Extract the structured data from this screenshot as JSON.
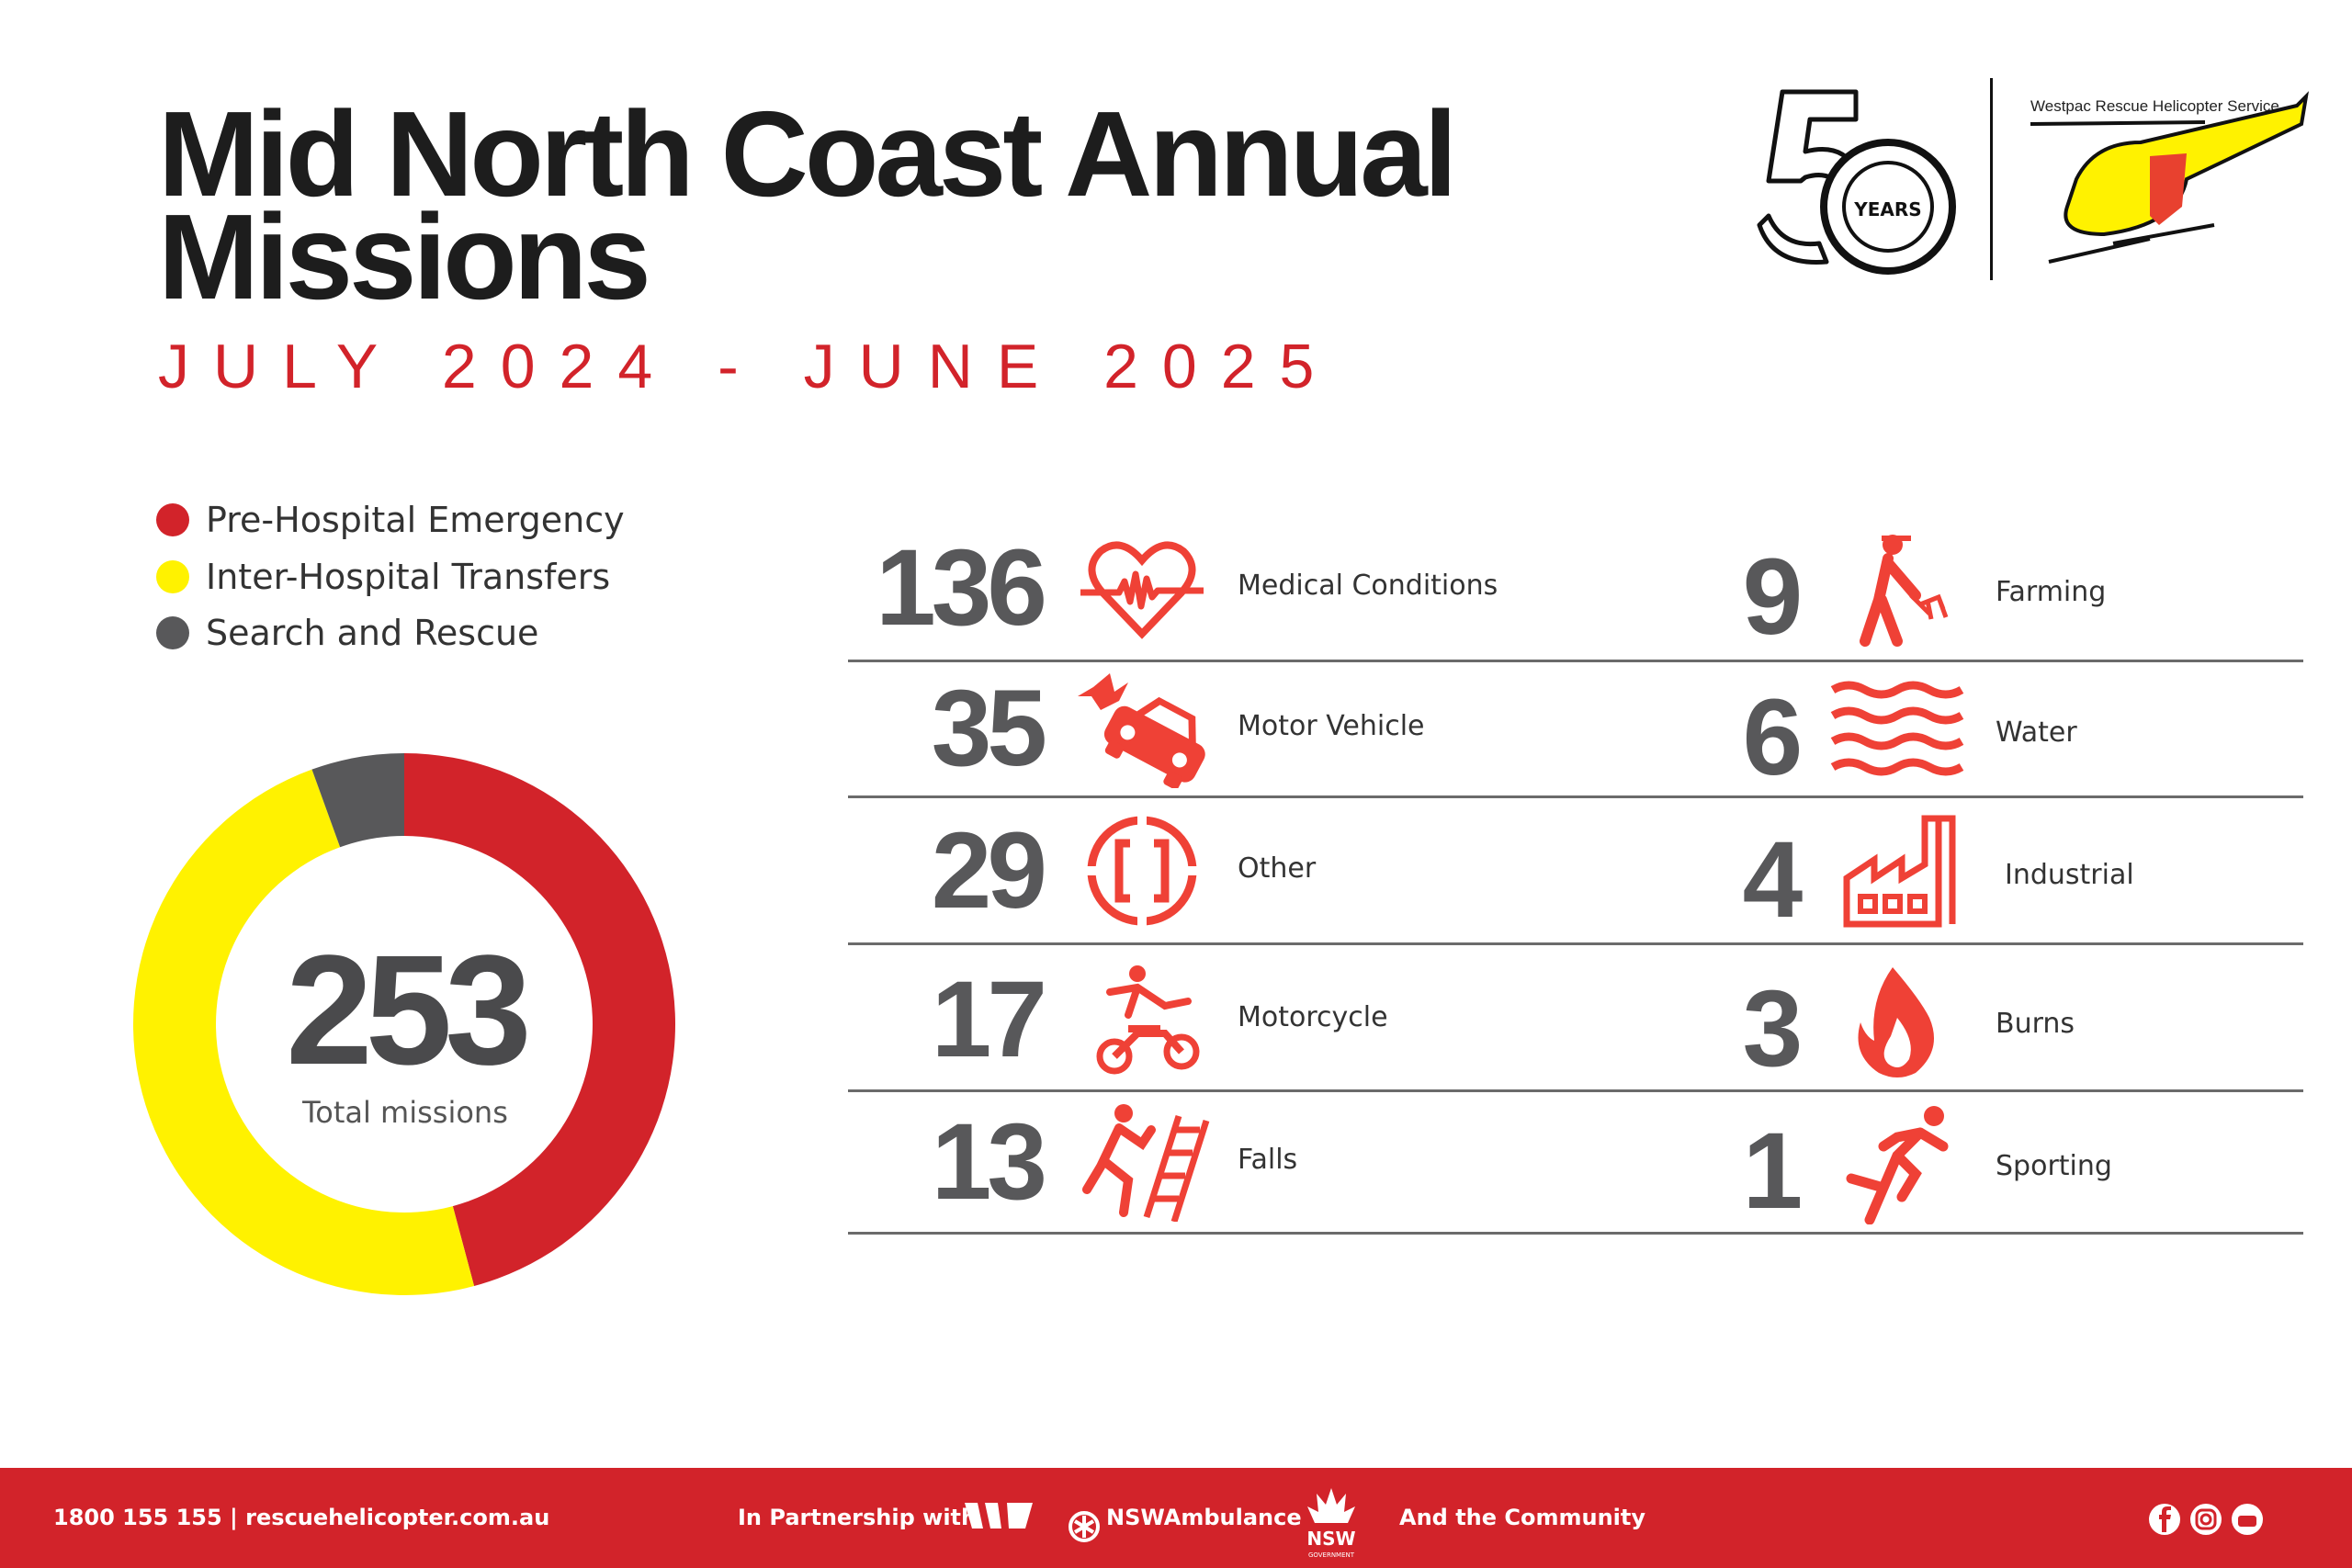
{
  "header": {
    "title": "Mid North Coast Annual Missions",
    "subtitle": "JULY 2024 - JUNE 2025",
    "logo_50": {
      "number": "50",
      "label": "YEARS"
    },
    "logo_service": "Westpac Rescue Helicopter Service"
  },
  "colors": {
    "red": "#d2232a",
    "yellow": "#fff200",
    "gray": "#58585a",
    "icon": "#ef4136"
  },
  "legend": [
    {
      "label": "Pre-Hospital Emergency",
      "color": "#d2232a"
    },
    {
      "label": "Inter-Hospital Transfers",
      "color": "#fff200"
    },
    {
      "label": "Search and Rescue",
      "color": "#58585a"
    }
  ],
  "donut": {
    "total": "253",
    "total_label": "Total missions",
    "segments": [
      {
        "name": "Pre-Hospital Emergency",
        "value": 116,
        "color": "#d2232a"
      },
      {
        "name": "Inter-Hospital Transfers",
        "value": 123,
        "color": "#fff200"
      },
      {
        "name": "Search and Rescue",
        "value": 14,
        "color": "#58585a"
      }
    ]
  },
  "categories_left": [
    {
      "count": "136",
      "label": "Medical Conditions",
      "icon": "heart-pulse-icon"
    },
    {
      "count": "35",
      "label": "Motor Vehicle",
      "icon": "car-crash-icon"
    },
    {
      "count": "29",
      "label": "Other",
      "icon": "other-brackets-icon"
    },
    {
      "count": "17",
      "label": "Motorcycle",
      "icon": "motorcycle-icon"
    },
    {
      "count": "13",
      "label": "Falls",
      "icon": "ladder-fall-icon"
    }
  ],
  "categories_right": [
    {
      "count": "9",
      "label": "Farming",
      "icon": "farmer-icon"
    },
    {
      "count": "6",
      "label": "Water",
      "icon": "water-waves-icon"
    },
    {
      "count": "4",
      "label": "Industrial",
      "icon": "factory-icon"
    },
    {
      "count": "3",
      "label": "Burns",
      "icon": "flame-icon"
    },
    {
      "count": "1",
      "label": "Sporting",
      "icon": "runner-icon"
    }
  ],
  "footer": {
    "contact": "1800 155 155  |  rescuehelicopter.com.au",
    "partnership": "In Partnership with",
    "ambulance": "NSWAmbulance",
    "nsw": "NSW",
    "nsw_sub": "GOVERNMENT",
    "community": "And the Community"
  }
}
